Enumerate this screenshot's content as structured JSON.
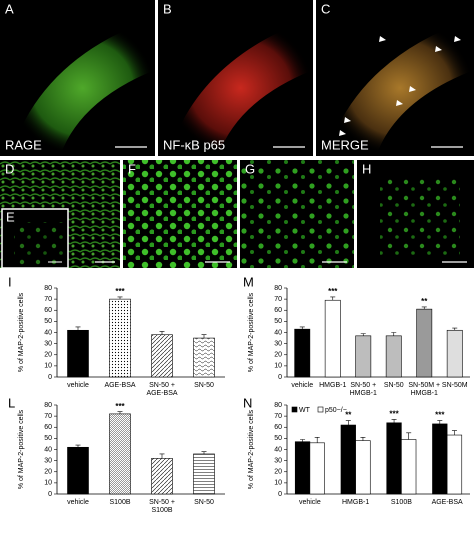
{
  "images": [
    {
      "panel": "A",
      "label": "RAGE"
    },
    {
      "panel": "B",
      "label": "NF-κB p65"
    },
    {
      "panel": "C",
      "label": "MERGE"
    },
    {
      "panel": "D"
    },
    {
      "panel": "E"
    },
    {
      "panel": "F"
    },
    {
      "panel": "G"
    },
    {
      "panel": "H"
    }
  ],
  "chart_data": [
    {
      "type": "bar",
      "panel": "I",
      "ylabel": "% of MAP-2-positive cells",
      "categories": [
        "vehicle",
        "AGE-BSA",
        "SN-50 +\nAGE-BSA",
        "SN-50"
      ],
      "values": [
        42,
        70,
        38,
        35
      ],
      "errors": [
        3,
        2,
        3,
        3
      ],
      "significance": [
        null,
        "***",
        null,
        null
      ],
      "fills": [
        "#000000",
        "dots",
        "hatch",
        "wave"
      ],
      "ylim": [
        0,
        80
      ],
      "yticks": [
        0,
        10,
        20,
        30,
        40,
        50,
        60,
        70,
        80
      ]
    },
    {
      "type": "bar",
      "panel": "M",
      "ylabel": "% of MAP-2-positive cells",
      "categories": [
        "vehicle",
        "HMGB-1",
        "SN-50 +\nHMGB-1",
        "SN-50",
        "SN-50M +\nHMGB-1",
        "SN-50M"
      ],
      "values": [
        43,
        69,
        37,
        37,
        61,
        42
      ],
      "errors": [
        2,
        3,
        2,
        3,
        2,
        2
      ],
      "significance": [
        null,
        "***",
        null,
        null,
        "**",
        null
      ],
      "fills": [
        "#000000",
        "#ffffff",
        "#bdbdbd",
        "#bdbdbd",
        "#9a9a9a",
        "#dedede"
      ],
      "ylim": [
        0,
        80
      ],
      "yticks": [
        0,
        10,
        20,
        30,
        40,
        50,
        60,
        70,
        80
      ]
    },
    {
      "type": "bar",
      "panel": "L",
      "ylabel": "% of MAP-2-positive cells",
      "categories": [
        "vehicle",
        "S100B",
        "SN-50 +\nS100B",
        "SN-50"
      ],
      "values": [
        42,
        72,
        32,
        36
      ],
      "errors": [
        2,
        2,
        4,
        2
      ],
      "significance": [
        null,
        "***",
        null,
        null
      ],
      "fills": [
        "#000000",
        "fine",
        "hatch",
        "lines"
      ],
      "ylim": [
        0,
        80
      ],
      "yticks": [
        0,
        10,
        20,
        30,
        40,
        50,
        60,
        70,
        80
      ]
    },
    {
      "type": "grouped_bar",
      "panel": "N",
      "ylabel": "% of MAP-2-positive cells",
      "categories": [
        "vehicle",
        "HMGB-1",
        "S100B",
        "AGE-BSA"
      ],
      "series": [
        {
          "name": "WT",
          "color": "#000000",
          "values": [
            47,
            62,
            64,
            63
          ],
          "errors": [
            2,
            4,
            3,
            3
          ],
          "significance": [
            null,
            "**",
            "***",
            "***"
          ]
        },
        {
          "name": "p50−/−",
          "color": "#ffffff",
          "values": [
            46,
            48,
            49,
            53
          ],
          "errors": [
            5,
            3,
            6,
            4
          ],
          "significance": [
            null,
            null,
            null,
            null
          ]
        }
      ],
      "ylim": [
        0,
        80
      ],
      "yticks": [
        0,
        10,
        20,
        30,
        40,
        50,
        60,
        70,
        80
      ]
    }
  ]
}
